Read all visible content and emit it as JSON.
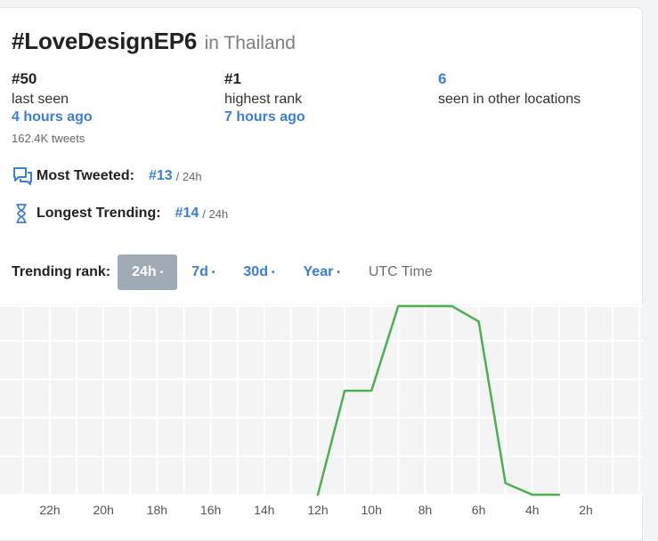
{
  "header": {
    "hashtag": "#LoveDesignEP6",
    "location": "in Thailand"
  },
  "stats": [
    {
      "value": "#50",
      "label": "last seen",
      "time": "4 hours ago",
      "extra": "162.4K tweets"
    },
    {
      "value": "#1",
      "label": "highest rank",
      "time": "7 hours ago"
    },
    {
      "value": "6",
      "label": "seen in other locations"
    }
  ],
  "most_tweeted": {
    "label": "Most Tweeted:",
    "rank": "#13",
    "period": "/ 24h",
    "icon": "chat-bubbles-icon"
  },
  "longest_trending": {
    "label": "Longest Trending:",
    "rank": "#14",
    "period": "/ 24h",
    "icon": "hourglass-icon"
  },
  "trending_rank": {
    "label": "Trending rank:",
    "tabs": [
      {
        "label": "24h",
        "dot": "•",
        "active": true
      },
      {
        "label": "7d",
        "dot": "•"
      },
      {
        "label": "30d",
        "dot": "•"
      },
      {
        "label": "Year",
        "dot": "•"
      }
    ],
    "utc_label": "UTC Time"
  },
  "colors": {
    "accent": "#3b7dd8",
    "line": "#4caf50",
    "active_tab": "#9faab5"
  },
  "chart_data": {
    "type": "line",
    "x_ticks": [
      "22h",
      "20h",
      "18h",
      "16h",
      "14h",
      "12h",
      "10h",
      "8h",
      "6h",
      "4h",
      "2h"
    ],
    "x": [
      "12h",
      "11h",
      "10h",
      "9h",
      "8h",
      "7h",
      "6h",
      "5h",
      "4h",
      "3h"
    ],
    "y": [
      50,
      23,
      23,
      1,
      1,
      1,
      5,
      47,
      50,
      50
    ],
    "ylim": [
      1,
      50
    ],
    "y_inverted": true,
    "grid": true
  }
}
